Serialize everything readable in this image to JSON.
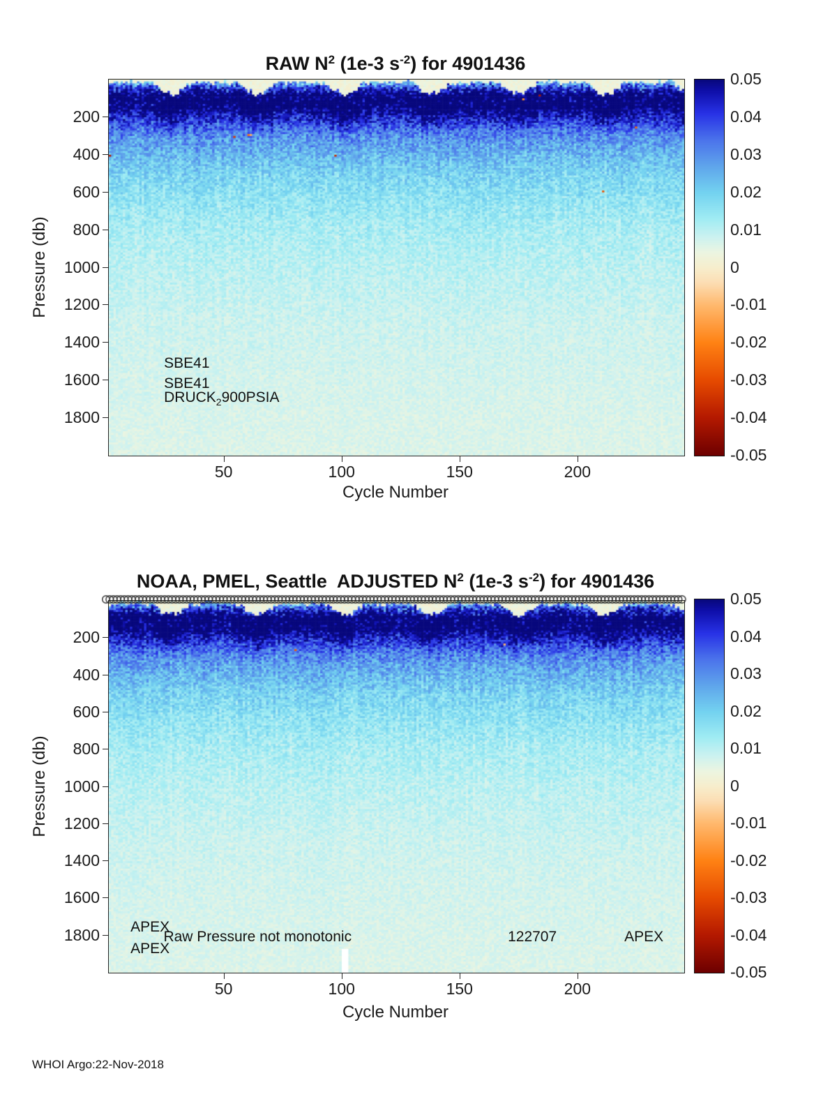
{
  "footer": "WHOI Argo:22-Nov-2018",
  "chart_data": [
    {
      "type": "heatmap",
      "id": "raw",
      "title": "RAW N^2 (1e-3 s^-2) for 4901436",
      "title_parts": {
        "prefix": "RAW N",
        "sup1": "2",
        "mid": " (1e-3 s",
        "sup2": "-2",
        "suffix": ") for 4901436"
      },
      "xlabel": "Cycle Number",
      "ylabel": "Pressure (db)",
      "x_range": [
        1,
        245
      ],
      "x_ticks": [
        50,
        100,
        150,
        200
      ],
      "y_range": [
        0,
        2000
      ],
      "y_ticks": [
        200,
        400,
        600,
        800,
        1000,
        1200,
        1400,
        1600,
        1800
      ],
      "y_axis_direction": "down",
      "value_units": "1e-3 s^-2",
      "value_range": [
        -0.05,
        0.05
      ],
      "colorbar_ticks": [
        0.05,
        0.04,
        0.03,
        0.02,
        0.01,
        0,
        -0.01,
        -0.02,
        -0.03,
        -0.04,
        -0.05
      ],
      "colormap_stops": [
        {
          "v": -0.05,
          "rgb": [
            110,
            0,
            0
          ]
        },
        {
          "v": -0.04,
          "rgb": [
            180,
            25,
            0
          ]
        },
        {
          "v": -0.03,
          "rgb": [
            230,
            75,
            0
          ]
        },
        {
          "v": -0.02,
          "rgb": [
            255,
            130,
            20
          ]
        },
        {
          "v": -0.01,
          "rgb": [
            255,
            185,
            110
          ]
        },
        {
          "v": -0.004,
          "rgb": [
            252,
            222,
            180
          ]
        },
        {
          "v": 0,
          "rgb": [
            247,
            238,
            205
          ]
        },
        {
          "v": 0.004,
          "rgb": [
            236,
            245,
            225
          ]
        },
        {
          "v": 0.008,
          "rgb": [
            205,
            242,
            240
          ]
        },
        {
          "v": 0.013,
          "rgb": [
            160,
            236,
            243
          ]
        },
        {
          "v": 0.02,
          "rgb": [
            115,
            210,
            240
          ]
        },
        {
          "v": 0.027,
          "rgb": [
            95,
            165,
            235
          ]
        },
        {
          "v": 0.034,
          "rgb": [
            75,
            115,
            235
          ]
        },
        {
          "v": 0.041,
          "rgb": [
            40,
            50,
            230
          ]
        },
        {
          "v": 0.047,
          "rgb": [
            15,
            15,
            170
          ]
        },
        {
          "v": 0.05,
          "rgb": [
            8,
            8,
            125
          ]
        }
      ],
      "depth_profile": [
        [
          5,
          0.004
        ],
        [
          40,
          0.02
        ],
        [
          90,
          0.038
        ],
        [
          150,
          0.042
        ],
        [
          220,
          0.038
        ],
        [
          300,
          0.03
        ],
        [
          400,
          0.024
        ],
        [
          500,
          0.019
        ],
        [
          650,
          0.015
        ],
        [
          800,
          0.012
        ],
        [
          1000,
          0.01
        ],
        [
          1300,
          0.008
        ],
        [
          1600,
          0.007
        ],
        [
          2000,
          0.006
        ]
      ],
      "mixed_layer": {
        "min_db": 15,
        "amp_db": 62,
        "period_cycles": 37,
        "phase": 3.26,
        "surface_value": 0.003
      },
      "noise": {
        "amp_surface": 0.011,
        "decay_db": 500,
        "amp_deep": 0.0018,
        "column_amp": 0.004,
        "column_decay_db": 700,
        "neg_speckle_prob": 0.0003
      },
      "annotations": [
        {
          "text": "SBE41",
          "cycle": 24.7,
          "pressure": 1515
        },
        {
          "text": "SBE41",
          "cycle": 24.7,
          "pressure": 1620
        },
        {
          "parts": {
            "pre": "DRUCK",
            "sub": "2",
            "post": "900PSIA"
          },
          "cycle": 24.7,
          "pressure": 1695
        }
      ]
    },
    {
      "type": "heatmap",
      "id": "adjusted",
      "title": "NOAA, PMEL, Seattle  ADJUSTED N^2 (1e-3 s^-2) for 4901436",
      "title_parts": {
        "prefix": "NOAA, PMEL, Seattle  ADJUSTED N",
        "sup1": "2",
        "mid": " (1e-3 s",
        "sup2": "-2",
        "suffix": ") for 4901436"
      },
      "xlabel": "Cycle Number",
      "ylabel": "Pressure (db)",
      "x_range": [
        1,
        245
      ],
      "x_ticks": [
        50,
        100,
        150,
        200
      ],
      "y_range": [
        0,
        2000
      ],
      "y_ticks": [
        200,
        400,
        600,
        800,
        1000,
        1200,
        1400,
        1600,
        1800
      ],
      "y_axis_direction": "down",
      "value_units": "1e-3 s^-2",
      "value_range": [
        -0.05,
        0.05
      ],
      "colorbar_ticks": [
        0.05,
        0.04,
        0.03,
        0.02,
        0.01,
        0,
        -0.01,
        -0.02,
        -0.03,
        -0.04,
        -0.05
      ],
      "colormap_stops": [
        {
          "v": -0.05,
          "rgb": [
            110,
            0,
            0
          ]
        },
        {
          "v": -0.04,
          "rgb": [
            180,
            25,
            0
          ]
        },
        {
          "v": -0.03,
          "rgb": [
            230,
            75,
            0
          ]
        },
        {
          "v": -0.02,
          "rgb": [
            255,
            130,
            20
          ]
        },
        {
          "v": -0.01,
          "rgb": [
            255,
            185,
            110
          ]
        },
        {
          "v": -0.004,
          "rgb": [
            252,
            222,
            180
          ]
        },
        {
          "v": 0,
          "rgb": [
            247,
            238,
            205
          ]
        },
        {
          "v": 0.004,
          "rgb": [
            236,
            245,
            225
          ]
        },
        {
          "v": 0.008,
          "rgb": [
            205,
            242,
            240
          ]
        },
        {
          "v": 0.013,
          "rgb": [
            160,
            236,
            243
          ]
        },
        {
          "v": 0.02,
          "rgb": [
            115,
            210,
            240
          ]
        },
        {
          "v": 0.027,
          "rgb": [
            95,
            165,
            235
          ]
        },
        {
          "v": 0.034,
          "rgb": [
            75,
            115,
            235
          ]
        },
        {
          "v": 0.041,
          "rgb": [
            40,
            50,
            230
          ]
        },
        {
          "v": 0.047,
          "rgb": [
            15,
            15,
            170
          ]
        },
        {
          "v": 0.05,
          "rgb": [
            8,
            8,
            125
          ]
        }
      ],
      "depth_profile": [
        [
          5,
          0.004
        ],
        [
          40,
          0.02
        ],
        [
          90,
          0.038
        ],
        [
          150,
          0.042
        ],
        [
          220,
          0.038
        ],
        [
          300,
          0.03
        ],
        [
          400,
          0.024
        ],
        [
          500,
          0.019
        ],
        [
          650,
          0.015
        ],
        [
          800,
          0.012
        ],
        [
          1000,
          0.01
        ],
        [
          1300,
          0.008
        ],
        [
          1600,
          0.007
        ],
        [
          2000,
          0.006
        ]
      ],
      "mixed_layer": {
        "min_db": 15,
        "amp_db": 62,
        "period_cycles": 37,
        "phase": 3.26,
        "surface_value": 0.003
      },
      "noise": {
        "amp_surface": 0.011,
        "decay_db": 500,
        "amp_deep": 0.0018,
        "column_amp": 0.004,
        "column_decay_db": 700,
        "neg_speckle_prob": 0.0003
      },
      "markers": {
        "glyph": "o",
        "count": 158,
        "pressure": 0
      },
      "gaps": [
        {
          "cycle": 101,
          "p_from": 1870,
          "p_to": 2000
        }
      ],
      "annotations": [
        {
          "text": "APEX",
          "cycle": 10.5,
          "pressure": 1760
        },
        {
          "text": "APEX",
          "cycle": 10.5,
          "pressure": 1878
        },
        {
          "text": "Raw Pressure not monotonic",
          "cycle": 24.5,
          "pressure": 1812
        },
        {
          "text": "122707",
          "cycle": 170.5,
          "pressure": 1812
        },
        {
          "text": "APEX",
          "cycle": 219.9,
          "pressure": 1812
        }
      ]
    }
  ]
}
